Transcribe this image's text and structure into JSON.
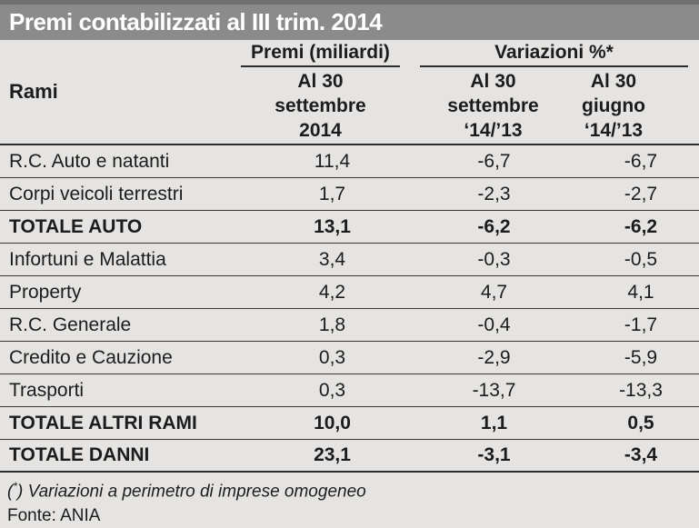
{
  "title": "Premi contabilizzati al III trim. 2014",
  "colors": {
    "title_bar": "#8b8b8b",
    "title_bar_top_strip": "#6f6f6f",
    "title_text": "#ffffff",
    "background": "#e5e4e2",
    "line": "#2b2b2b",
    "text": "#1c1c1c"
  },
  "table": {
    "rami_label": "Rami",
    "groups": {
      "premi": "Premi (miliardi)",
      "variazioni": "Variazioni %*"
    },
    "subheaders": {
      "premi": [
        "Al 30",
        "settembre",
        "2014"
      ],
      "var_settembre": [
        "Al 30",
        "settembre",
        "‘14/’13"
      ],
      "var_giugno": [
        "Al 30",
        "giugno",
        "‘14/’13"
      ]
    },
    "rows": [
      {
        "ramo": "R.C. Auto e natanti",
        "premi": "11,4",
        "var_set": "-6,7",
        "var_giu": "-6,7"
      },
      {
        "ramo": "Corpi veicoli terrestri",
        "premi": "1,7",
        "var_set": "-2,3",
        "var_giu": "-2,7"
      },
      {
        "ramo": "TOTALE AUTO",
        "premi": "13,1",
        "var_set": "-6,2",
        "var_giu": "-6,2"
      },
      {
        "ramo": "Infortuni e Malattia",
        "premi": "3,4",
        "var_set": "-0,3",
        "var_giu": "-0,5"
      },
      {
        "ramo": "Property",
        "premi": "4,2",
        "var_set": "4,7",
        "var_giu": "4,1"
      },
      {
        "ramo": "R.C. Generale",
        "premi": "1,8",
        "var_set": "-0,4",
        "var_giu": "-1,7"
      },
      {
        "ramo": "Credito e Cauzione",
        "premi": "0,3",
        "var_set": "-2,9",
        "var_giu": "-5,9"
      },
      {
        "ramo": "Trasporti",
        "premi": "0,3",
        "var_set": "-13,7",
        "var_giu": "-13,3"
      },
      {
        "ramo": "TOTALE ALTRI RAMI",
        "premi": "10,0",
        "var_set": "1,1",
        "var_giu": "0,5"
      },
      {
        "ramo": "TOTALE DANNI",
        "premi": "23,1",
        "var_set": "-3,1",
        "var_giu": "-3,4"
      }
    ]
  },
  "footnote": {
    "paren_open": "(",
    "star": "*",
    "paren_close": ")",
    "text": "Variazioni a perimetro di imprese omogeneo"
  },
  "source": "Fonte: ANIA",
  "chart_data": {
    "type": "table",
    "title": "Premi contabilizzati al III trim. 2014",
    "columns": [
      "Rami",
      "Premi (miliardi) - Al 30 settembre 2014",
      "Variazioni %* - Al 30 settembre '14/'13",
      "Variazioni %* - Al 30 giugno '14/'13"
    ],
    "rows": [
      {
        "ramo": "R.C. Auto e natanti",
        "premi_mld": 11.4,
        "var_pct_settembre": -6.7,
        "var_pct_giugno": -6.7,
        "is_total": false
      },
      {
        "ramo": "Corpi veicoli terrestri",
        "premi_mld": 1.7,
        "var_pct_settembre": -2.3,
        "var_pct_giugno": -2.7,
        "is_total": false
      },
      {
        "ramo": "TOTALE AUTO",
        "premi_mld": 13.1,
        "var_pct_settembre": -6.2,
        "var_pct_giugno": -6.2,
        "is_total": true
      },
      {
        "ramo": "Infortuni e Malattia",
        "premi_mld": 3.4,
        "var_pct_settembre": -0.3,
        "var_pct_giugno": -0.5,
        "is_total": false
      },
      {
        "ramo": "Property",
        "premi_mld": 4.2,
        "var_pct_settembre": 4.7,
        "var_pct_giugno": 4.1,
        "is_total": false
      },
      {
        "ramo": "R.C. Generale",
        "premi_mld": 1.8,
        "var_pct_settembre": -0.4,
        "var_pct_giugno": -1.7,
        "is_total": false
      },
      {
        "ramo": "Credito e Cauzione",
        "premi_mld": 0.3,
        "var_pct_settembre": -2.9,
        "var_pct_giugno": -5.9,
        "is_total": false
      },
      {
        "ramo": "Trasporti",
        "premi_mld": 0.3,
        "var_pct_settembre": -13.7,
        "var_pct_giugno": -13.3,
        "is_total": false
      },
      {
        "ramo": "TOTALE ALTRI RAMI",
        "premi_mld": 10.0,
        "var_pct_settembre": 1.1,
        "var_pct_giugno": 0.5,
        "is_total": true
      },
      {
        "ramo": "TOTALE DANNI",
        "premi_mld": 23.1,
        "var_pct_settembre": -3.1,
        "var_pct_giugno": -3.4,
        "is_total": true
      }
    ],
    "footnote": "(*) Variazioni a perimetro di imprese omogeneo",
    "source": "Fonte: ANIA"
  }
}
